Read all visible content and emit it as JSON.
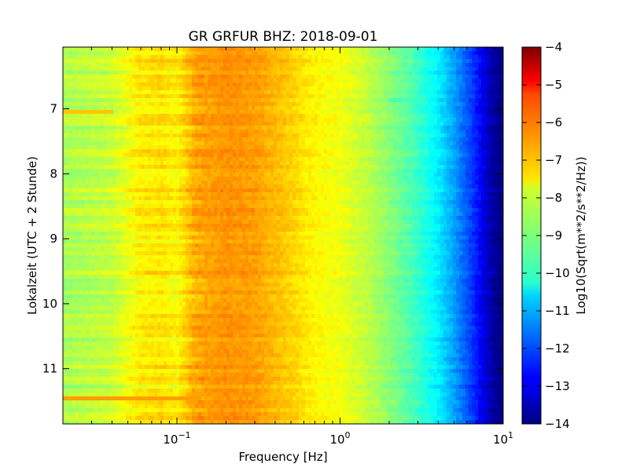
{
  "chart_data": {
    "type": "heatmap",
    "title": "GR GRFUR BHZ: 2018-09-01",
    "xlabel": "Frequency [Hz]",
    "ylabel": "Lokalzeit (UTC + 2 Stunde)",
    "x_scale": "log",
    "xlim": [
      0.02,
      10
    ],
    "ylim": [
      11.85,
      6.05
    ],
    "y_inverted": true,
    "x_ticks": [
      {
        "value": 0.1,
        "base": "10",
        "exp": "−1"
      },
      {
        "value": 1,
        "base": "10",
        "exp": "0"
      },
      {
        "value": 10,
        "base": "10",
        "exp": "1"
      }
    ],
    "y_ticks": [
      {
        "value": 7,
        "label": "7"
      },
      {
        "value": 8,
        "label": "8"
      },
      {
        "value": 9,
        "label": "9"
      },
      {
        "value": 10,
        "label": "10"
      },
      {
        "value": 11,
        "label": "11"
      }
    ],
    "colorbar": {
      "label": "Log10(Sqrt(m**2/s**2/Hz))",
      "colormap": "jet",
      "range": [
        -14,
        -4
      ],
      "ticks": [
        {
          "value": -4,
          "label": "−4"
        },
        {
          "value": -5,
          "label": "−5"
        },
        {
          "value": -6,
          "label": "−6"
        },
        {
          "value": -7,
          "label": "−7"
        },
        {
          "value": -8,
          "label": "−8"
        },
        {
          "value": -9,
          "label": "−9"
        },
        {
          "value": -10,
          "label": "−10"
        },
        {
          "value": -11,
          "label": "−11"
        },
        {
          "value": -12,
          "label": "−12"
        },
        {
          "value": -13,
          "label": "−13"
        },
        {
          "value": -14,
          "label": "−14"
        }
      ]
    },
    "frequency_profile": {
      "frequencies": [
        0.02,
        0.04,
        0.06,
        0.08,
        0.1,
        0.13,
        0.2,
        0.3,
        0.5,
        0.7,
        1.0,
        1.5,
        2.0,
        3.0,
        4.0,
        5.0,
        6.0,
        7.0,
        8.0,
        9.0,
        10.0
      ],
      "values": [
        -8.6,
        -8.3,
        -7.6,
        -7.5,
        -7.7,
        -6.9,
        -6.7,
        -6.8,
        -7.3,
        -7.7,
        -7.9,
        -8.4,
        -8.9,
        -9.7,
        -10.4,
        -11.2,
        -11.9,
        -12.6,
        -13.3,
        -13.8,
        -14.0
      ]
    },
    "features": [
      {
        "time_start": 11.4,
        "time_end": 11.47,
        "freq_start": 0.02,
        "freq_end": 0.14,
        "value": -6.8
      },
      {
        "time_start": 7.0,
        "time_end": 7.07,
        "freq_start": 0.02,
        "freq_end": 0.04,
        "value": -7.2
      },
      {
        "time_start": 6.85,
        "time_end": 6.92,
        "freq_start": 2.0,
        "freq_end": 3.0,
        "value": -9.6
      }
    ]
  }
}
